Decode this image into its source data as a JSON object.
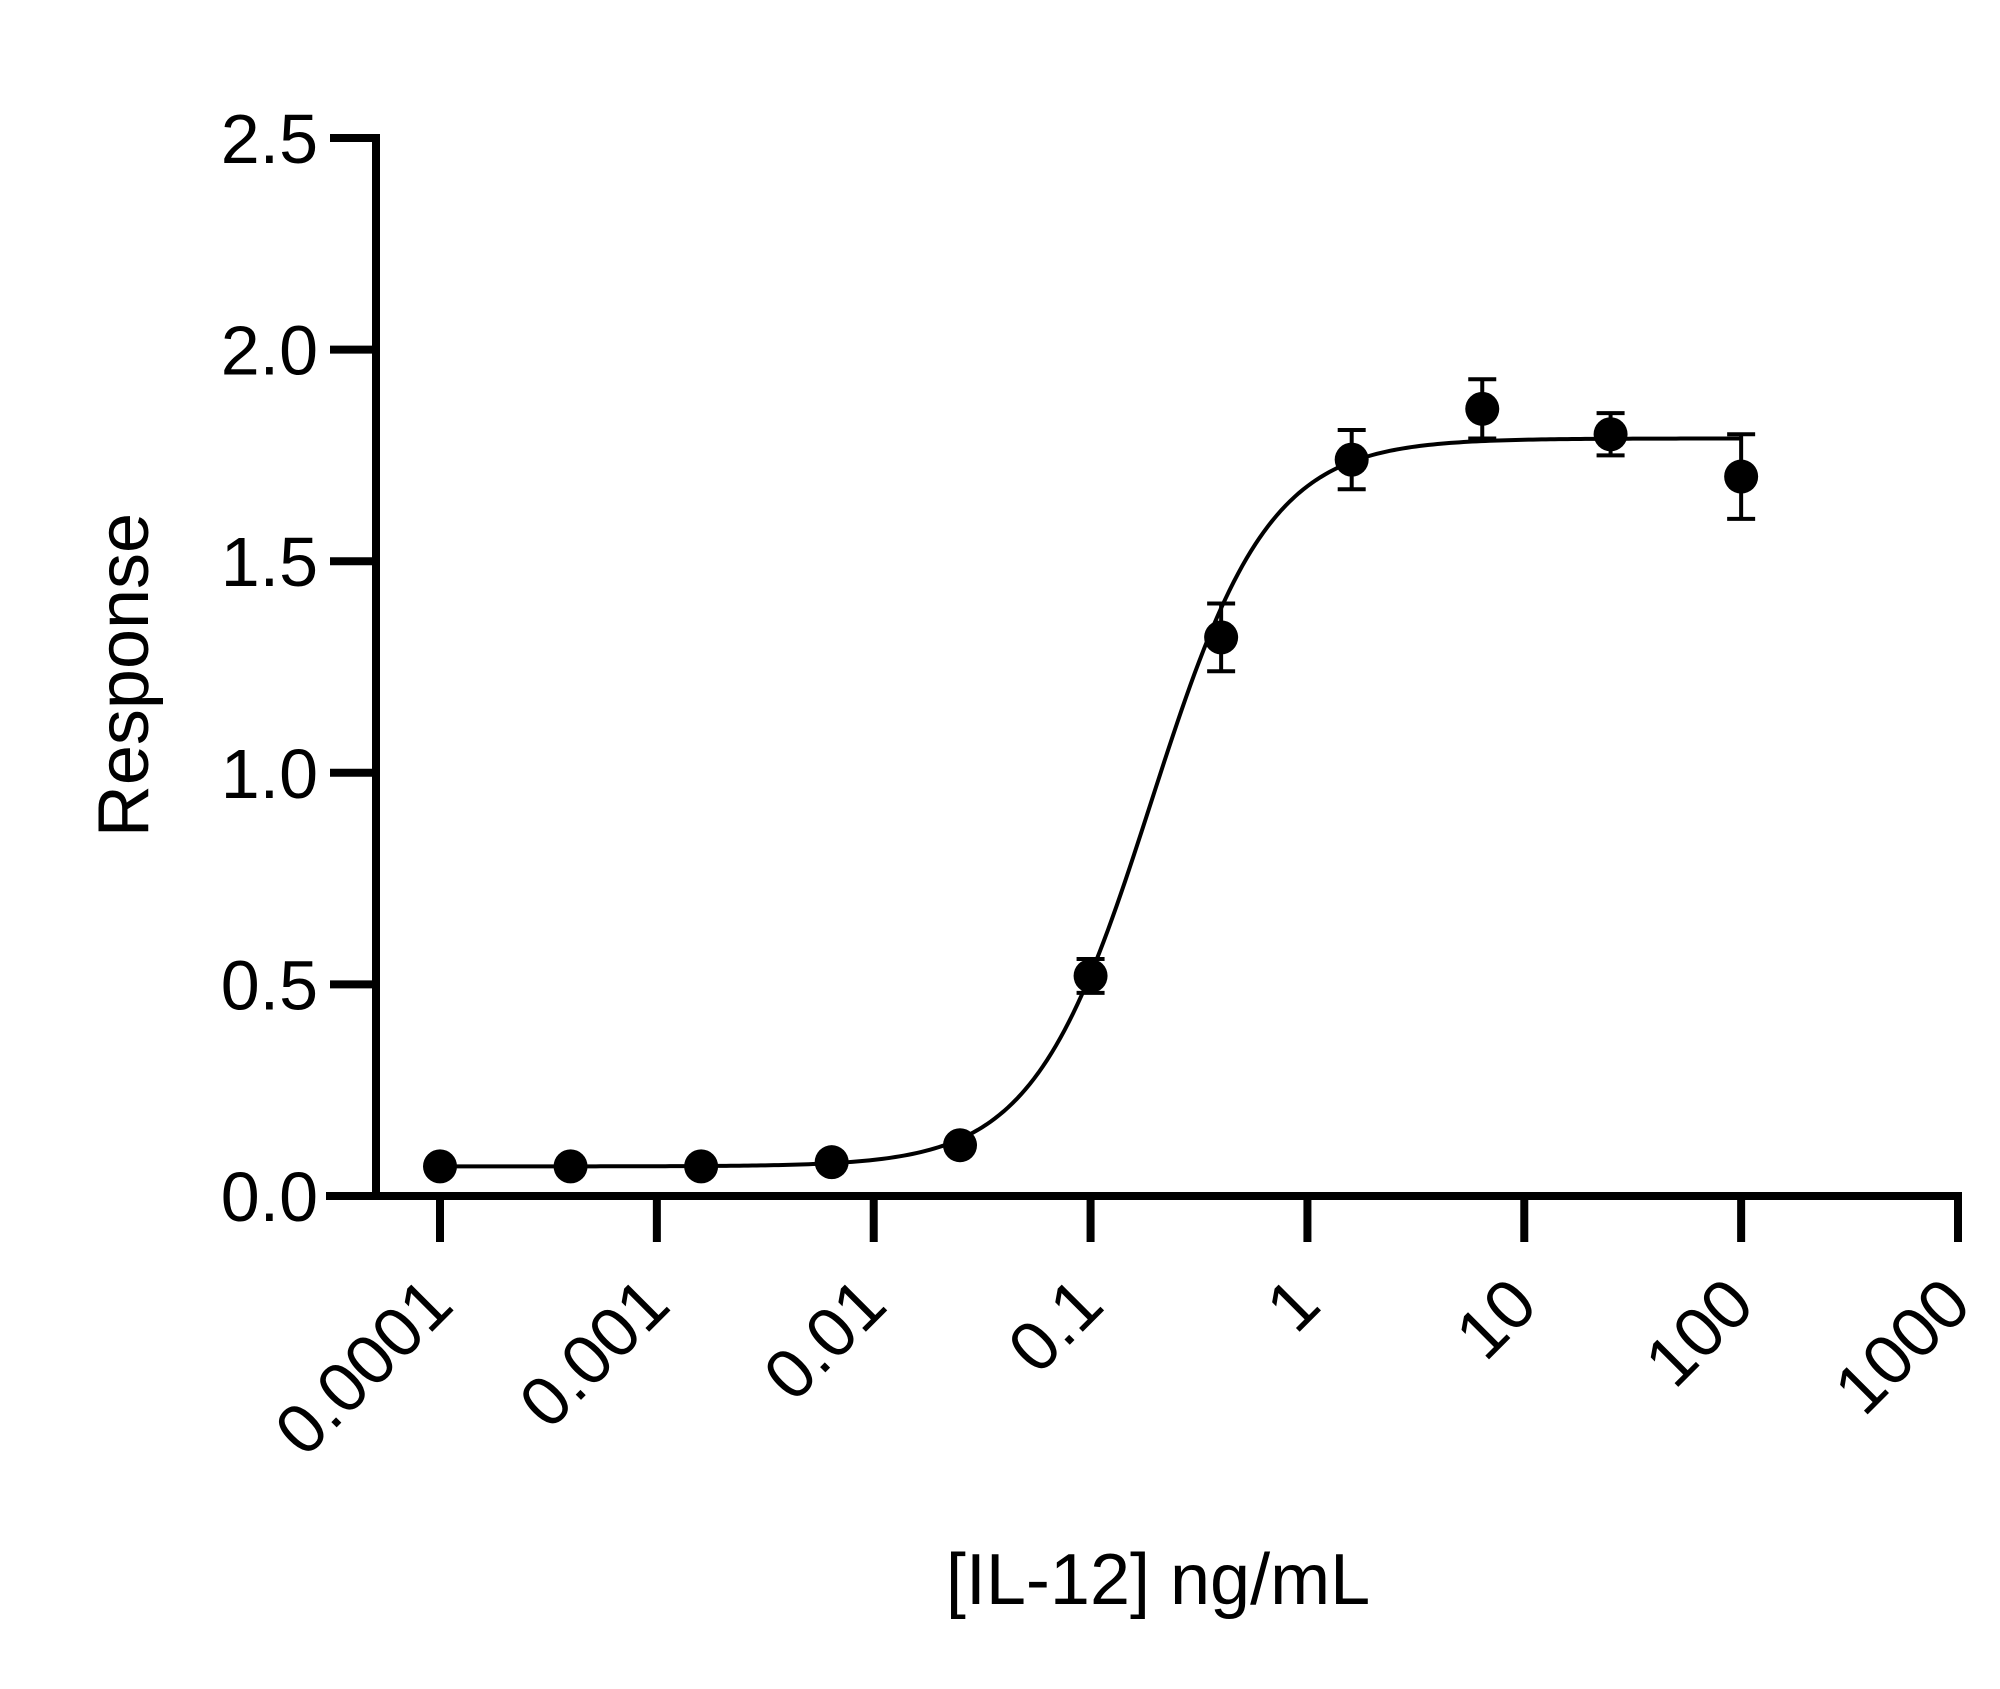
{
  "chart_data": {
    "type": "scatter",
    "title": "",
    "xlabel": "[IL-12] ng/mL",
    "ylabel": "Response",
    "x_scale": "log",
    "xlim": [
      0.0001,
      1000
    ],
    "ylim": [
      0,
      2.5
    ],
    "x_ticks": [
      "0.0001",
      "0.001",
      "0.01",
      "0.1",
      "1",
      "10",
      "100",
      "1000"
    ],
    "y_ticks": [
      "0.0",
      "0.5",
      "1.0",
      "1.5",
      "2.0",
      "2.5"
    ],
    "grid": false,
    "legend": "none",
    "series": [
      {
        "x": [
          0.0001,
          0.0004,
          0.0016,
          0.0064,
          0.025,
          0.1,
          0.4,
          1.6,
          6.4,
          25,
          100
        ],
        "y": [
          0.07,
          0.07,
          0.07,
          0.08,
          0.12,
          0.52,
          1.32,
          1.74,
          1.86,
          1.8,
          1.7
        ],
        "error": [
          0.01,
          0.01,
          0.01,
          0.01,
          0.02,
          0.04,
          0.08,
          0.07,
          0.07,
          0.05,
          0.1
        ]
      }
    ],
    "fit": {
      "model": "4PL",
      "bottom": 0.07,
      "top": 1.79,
      "ec50": 0.19,
      "hill": 1.6
    },
    "color": "#000000"
  }
}
